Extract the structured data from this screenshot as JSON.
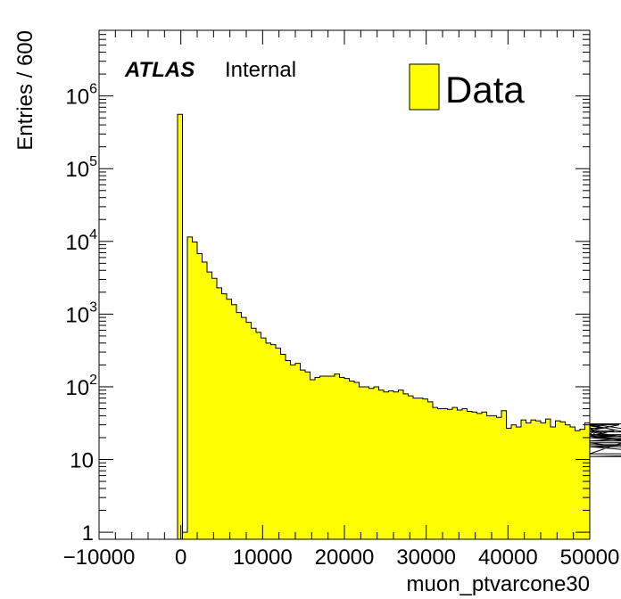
{
  "chart_data": {
    "type": "bar",
    "histogram": true,
    "log_y": true,
    "xlabel": "muon_ptvarcone30",
    "ylabel": "Entries / 600",
    "xlim": [
      -10000,
      50000
    ],
    "ylim": [
      0.8,
      8000000
    ],
    "bin_width": 600,
    "x_ticks": [
      {
        "value": -10000,
        "label": "−10000"
      },
      {
        "value": 0,
        "label": "0"
      },
      {
        "value": 10000,
        "label": "10000"
      },
      {
        "value": 20000,
        "label": "20000"
      },
      {
        "value": 30000,
        "label": "30000"
      },
      {
        "value": 40000,
        "label": "40000"
      },
      {
        "value": 50000,
        "label": "50000"
      }
    ],
    "y_ticks": [
      {
        "value": 1,
        "label": "1",
        "sup": ""
      },
      {
        "value": 10,
        "label": "10",
        "sup": ""
      },
      {
        "value": 100,
        "label": "10",
        "sup": "2"
      },
      {
        "value": 1000,
        "label": "10",
        "sup": "3"
      },
      {
        "value": 10000,
        "label": "10",
        "sup": "4"
      },
      {
        "value": 100000,
        "label": "10",
        "sup": "5"
      },
      {
        "value": 1000000,
        "label": "10",
        "sup": "6"
      }
    ],
    "fill_color": "#ffff00",
    "line_color": "#000000",
    "legend": {
      "entries": [
        "Data"
      ],
      "position": "top-right"
    },
    "annotation": {
      "bold": "ATLAS",
      "normal": "Internal",
      "position": "top-left"
    },
    "series": [
      {
        "name": "Data",
        "bin_edges_start": [
          -400,
          200
        ],
        "values": [
          560000,
          1,
          11500,
          9800,
          6800,
          5200,
          3800,
          3100,
          2300,
          1900,
          1600,
          1350,
          1050,
          900,
          770,
          640,
          560,
          470,
          400,
          380,
          340,
          280,
          230,
          200,
          210,
          170,
          160,
          125,
          135,
          140,
          140,
          140,
          150,
          135,
          130,
          120,
          115,
          100,
          100,
          95,
          100,
          90,
          85,
          88,
          85,
          90,
          80,
          75,
          70,
          70,
          68,
          62,
          52,
          50,
          50,
          49,
          52,
          48,
          50,
          46,
          45,
          43,
          45,
          40,
          40,
          38,
          47,
          27,
          30,
          28,
          35,
          32,
          35,
          34,
          32,
          36,
          28,
          34,
          33,
          30,
          28,
          25,
          26,
          32,
          28,
          22,
          29,
          27,
          21,
          25,
          30,
          24,
          20,
          20,
          22,
          20,
          20,
          18,
          21,
          15,
          17,
          12,
          31,
          20,
          16,
          16,
          16,
          15,
          11,
          12
        ]
      }
    ]
  }
}
